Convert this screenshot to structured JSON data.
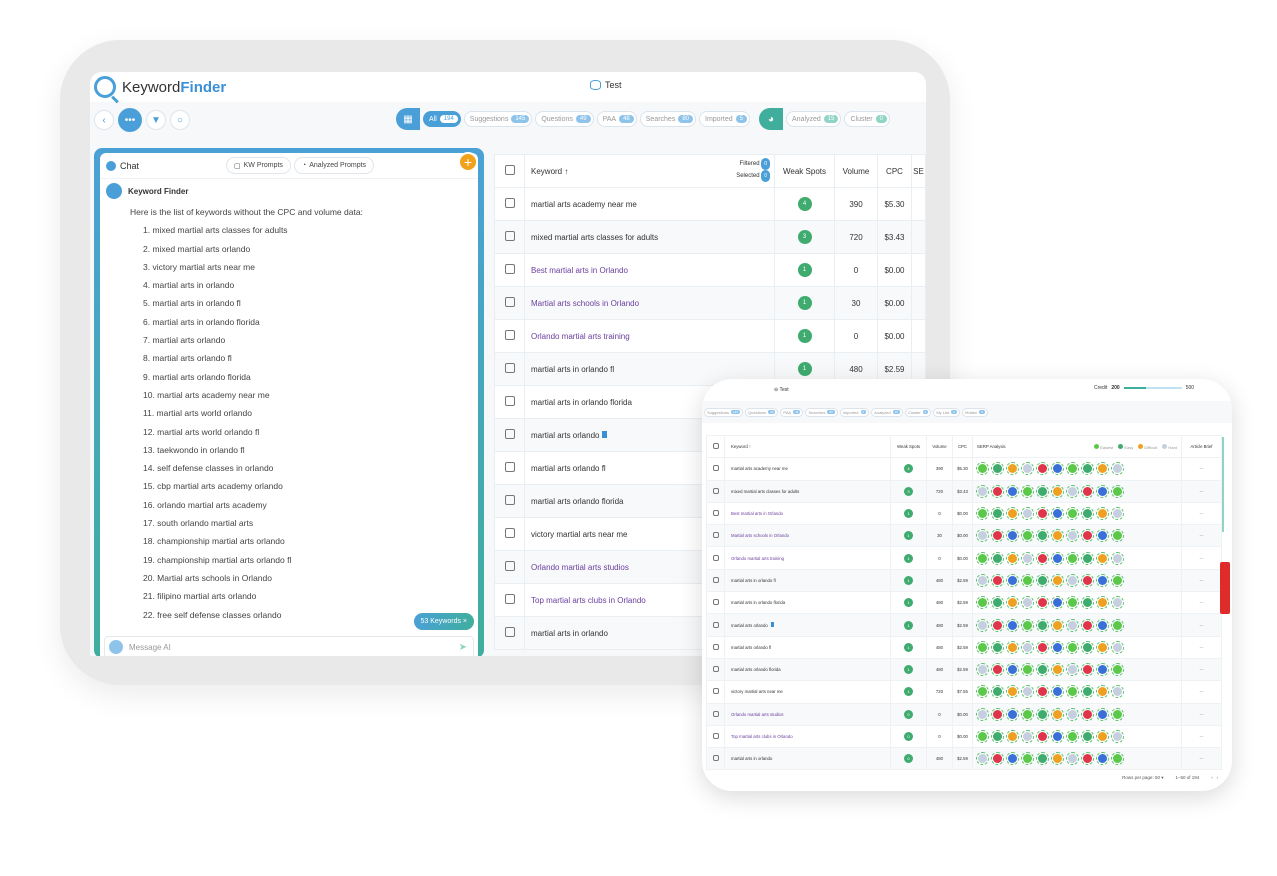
{
  "app": {
    "brand_prefix": "Keyword",
    "brand_suffix": "Finder",
    "project": "Test"
  },
  "filters": [
    {
      "label": "All",
      "count": "194",
      "active": true
    },
    {
      "label": "Suggestions",
      "count": "145"
    },
    {
      "label": "Questions",
      "count": "49"
    },
    {
      "label": "PAA",
      "count": "48"
    },
    {
      "label": "Searches",
      "count": "80"
    },
    {
      "label": "Imported",
      "count": "5"
    }
  ],
  "analysis_filters": [
    {
      "label": "Analyzed",
      "count": "15"
    },
    {
      "label": "Cluster",
      "count": "0"
    },
    {
      "label": "My List",
      "count": "0"
    },
    {
      "label": "Hidden",
      "count": "0"
    }
  ],
  "chat": {
    "title": "Chat",
    "kw_prompts": "KW Prompts",
    "analyzed_prompts": "Analyzed Prompts",
    "bot_name": "Keyword Finder",
    "intro": "Here is the list of keywords without the CPC and volume data:",
    "items": [
      "1. mixed martial arts classes for adults",
      "2. mixed martial arts orlando",
      "3. victory martial arts near me",
      "4. martial arts in orlando",
      "5. martial arts in orlando fl",
      "6. martial arts in orlando florida",
      "7. martial arts orlando",
      "8. martial arts orlando fl",
      "9. martial arts orlando florida",
      "10. martial arts academy near me",
      "11. martial arts world orlando",
      "12. martial arts world orlando fl",
      "13. taekwondo in orlando fl",
      "14. self defense classes in orlando",
      "15. cbp martial arts academy orlando",
      "16. orlando martial arts academy",
      "17. south orlando martial arts",
      "18. championship martial arts orlando",
      "19. championship martial arts orlando fl",
      "20. Martial arts schools in Orlando",
      "21. filipino martial arts orlando",
      "22. free self defense classes orlando"
    ],
    "keywords_pill": "53 Keywords ×",
    "message_placeholder": "Message AI"
  },
  "table": {
    "headers": {
      "keyword": "Keyword ↑",
      "filtered": "Filtered",
      "selected": "Selected",
      "filtered_count": "0",
      "selected_count": "0",
      "weak_spots": "Weak Spots",
      "volume": "Volume",
      "cpc": "CPC",
      "serp": "SERP Analysis",
      "article_brief": "Article Brief"
    },
    "legend": [
      "Easiest",
      "Easy",
      "Difficult",
      "Hard"
    ],
    "rows": [
      {
        "keyword": "martial arts academy near me",
        "ws": "4",
        "volume": "390",
        "cpc": "$5.30",
        "link": false
      },
      {
        "keyword": "mixed martial arts classes for adults",
        "ws": "3",
        "volume": "720",
        "cpc": "$3.43",
        "link": false
      },
      {
        "keyword": "Best martial arts in Orlando",
        "ws": "1",
        "volume": "0",
        "cpc": "$0.00",
        "link": true
      },
      {
        "keyword": "Martial arts schools in Orlando",
        "ws": "1",
        "volume": "30",
        "cpc": "$0.00",
        "link": true
      },
      {
        "keyword": "Orlando martial arts training",
        "ws": "1",
        "volume": "0",
        "cpc": "$0.00",
        "link": true
      },
      {
        "keyword": "martial arts in orlando fl",
        "ws": "1",
        "volume": "480",
        "cpc": "$2.59",
        "link": false
      },
      {
        "keyword": "martial arts in orlando florida",
        "ws": "1",
        "volume": "480",
        "cpc": "$2.59",
        "link": false
      },
      {
        "keyword": "martial arts orlando",
        "ws": "1",
        "volume": "480",
        "cpc": "$2.59",
        "link": false,
        "flag": true
      },
      {
        "keyword": "martial arts orlando fl",
        "ws": "1",
        "volume": "480",
        "cpc": "$2.59",
        "link": false
      },
      {
        "keyword": "martial arts orlando florida",
        "ws": "1",
        "volume": "480",
        "cpc": "$2.59",
        "link": false
      },
      {
        "keyword": "victory martial arts near me",
        "ws": "1",
        "volume": "720",
        "cpc": "$7.55",
        "link": false
      },
      {
        "keyword": "Orlando martial arts studios",
        "ws": "0",
        "volume": "0",
        "cpc": "$0.00",
        "link": true
      },
      {
        "keyword": "Top martial arts clubs in Orlando",
        "ws": "0",
        "volume": "0",
        "cpc": "$0.00",
        "link": true
      },
      {
        "keyword": "martial arts in orlando",
        "ws": "0",
        "volume": "480",
        "cpc": "$2.59",
        "link": false
      }
    ]
  },
  "credit": {
    "label": "Credit",
    "used": "200",
    "total": "500"
  },
  "pagination": {
    "rows_per_page_label": "Rows per page:",
    "rows_per_page": "50",
    "range": "1–50 of 194"
  },
  "colors": {
    "easiest": "#5cc84a",
    "easy": "#3fab6e",
    "difficult": "#f0a020",
    "hard": "#c5cfe0",
    "red": "#e0344a",
    "blue": "#3a6fd8"
  }
}
